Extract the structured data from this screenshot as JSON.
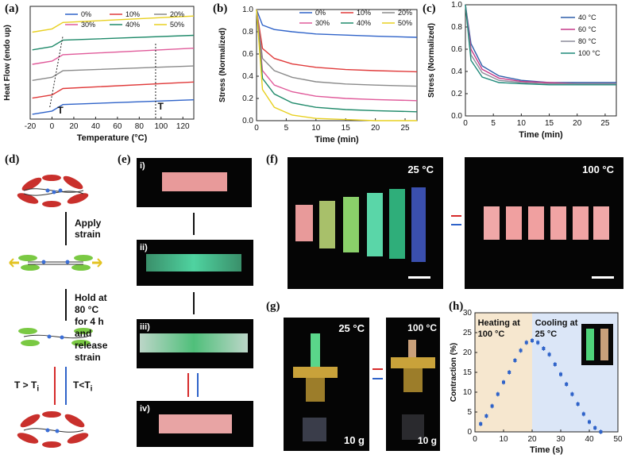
{
  "panel_labels": {
    "a": "(a)",
    "b": "(b)",
    "c": "(c)",
    "d": "(d)",
    "e": "(e)",
    "f": "(f)",
    "g": "(g)",
    "h": "(h)"
  },
  "colors": {
    "s0": "#2f63c9",
    "s10": "#e03a3a",
    "s20": "#8a8a8a",
    "s30": "#e05a9a",
    "s40": "#1f8a6a",
    "s50": "#e8d020",
    "c40": "#2f5faa",
    "c60": "#c63a8a",
    "c80": "#8c8c9a",
    "c100": "#1f8a7a",
    "heat": "#f6e7cf",
    "cool": "#dbe6f7",
    "marker": "#2f63c9"
  },
  "chart_data": [
    {
      "panel": "a",
      "type": "line",
      "xlabel": "Temperature (°C)",
      "ylabel": "Heat Flow (endo up)",
      "xlim": [
        -20,
        130
      ],
      "xticks": [
        "-20",
        "0",
        "20",
        "40",
        "60",
        "80",
        "100",
        "120"
      ],
      "legend": [
        "0%",
        "10%",
        "20%",
        "30%",
        "40%",
        "50%"
      ],
      "annotations": [
        "Tg",
        "Ti"
      ],
      "series": [
        {
          "name": "0%",
          "x": [
            -18,
            0,
            10,
            130
          ],
          "y": [
            0.3,
            0.5,
            0.9,
            1.2
          ]
        },
        {
          "name": "10%",
          "x": [
            -18,
            0,
            10,
            130
          ],
          "y": [
            1.3,
            1.5,
            1.9,
            2.3
          ]
        },
        {
          "name": "20%",
          "x": [
            -18,
            0,
            10,
            130
          ],
          "y": [
            2.4,
            2.6,
            3.0,
            3.3
          ]
        },
        {
          "name": "30%",
          "x": [
            -18,
            0,
            10,
            130
          ],
          "y": [
            3.4,
            3.6,
            4.0,
            4.4
          ]
        },
        {
          "name": "40%",
          "x": [
            -18,
            0,
            10,
            130
          ],
          "y": [
            4.3,
            4.5,
            4.9,
            5.2
          ]
        },
        {
          "name": "50%",
          "x": [
            -18,
            0,
            10,
            130
          ],
          "y": [
            5.4,
            5.6,
            6.0,
            6.4
          ]
        }
      ]
    },
    {
      "panel": "b",
      "type": "line",
      "xlabel": "Time (min)",
      "ylabel": "Stress (Normalized)",
      "xlim": [
        0,
        27
      ],
      "ylim": [
        0,
        1.0
      ],
      "xticks": [
        "0",
        "5",
        "10",
        "15",
        "20",
        "25"
      ],
      "yticks": [
        "0.0",
        "0.2",
        "0.4",
        "0.6",
        "0.8",
        "1.0"
      ],
      "legend": [
        "0%",
        "10%",
        "20%",
        "30%",
        "40%",
        "50%"
      ],
      "series": [
        {
          "name": "0%",
          "x": [
            0,
            1,
            3,
            6,
            10,
            15,
            20,
            27
          ],
          "y": [
            1.0,
            0.86,
            0.82,
            0.8,
            0.78,
            0.77,
            0.76,
            0.75
          ]
        },
        {
          "name": "10%",
          "x": [
            0,
            1,
            3,
            6,
            10,
            15,
            20,
            27
          ],
          "y": [
            1.0,
            0.65,
            0.56,
            0.51,
            0.48,
            0.46,
            0.45,
            0.44
          ]
        },
        {
          "name": "20%",
          "x": [
            0,
            1,
            3,
            6,
            10,
            15,
            20,
            27
          ],
          "y": [
            1.0,
            0.56,
            0.45,
            0.39,
            0.35,
            0.33,
            0.32,
            0.31
          ]
        },
        {
          "name": "30%",
          "x": [
            0,
            1,
            3,
            6,
            10,
            15,
            20,
            27
          ],
          "y": [
            1.0,
            0.45,
            0.32,
            0.26,
            0.22,
            0.2,
            0.19,
            0.18
          ]
        },
        {
          "name": "40%",
          "x": [
            0,
            1,
            3,
            6,
            10,
            15,
            20,
            27
          ],
          "y": [
            1.0,
            0.38,
            0.24,
            0.16,
            0.12,
            0.1,
            0.09,
            0.08
          ]
        },
        {
          "name": "50%",
          "x": [
            0,
            1,
            3,
            6,
            10,
            15,
            20,
            27
          ],
          "y": [
            1.0,
            0.28,
            0.12,
            0.05,
            0.02,
            0.01,
            0.0,
            0.0
          ]
        }
      ]
    },
    {
      "panel": "c",
      "type": "line",
      "xlabel": "Time (min)",
      "ylabel": "Stress (Normalized)",
      "xlim": [
        0,
        27
      ],
      "ylim": [
        0,
        1.0
      ],
      "xticks": [
        "0",
        "5",
        "10",
        "15",
        "20",
        "25"
      ],
      "yticks": [
        "0.0",
        "0.2",
        "0.4",
        "0.6",
        "0.8",
        "1.0"
      ],
      "legend": [
        "40 °C",
        "60 °C",
        "80 °C",
        "100 °C"
      ],
      "series": [
        {
          "name": "40 °C",
          "x": [
            0,
            1,
            3,
            6,
            10,
            15,
            20,
            27
          ],
          "y": [
            1.0,
            0.65,
            0.45,
            0.36,
            0.32,
            0.3,
            0.3,
            0.3
          ]
        },
        {
          "name": "60 °C",
          "x": [
            0,
            1,
            3,
            6,
            10,
            15,
            20,
            27
          ],
          "y": [
            1.0,
            0.6,
            0.42,
            0.34,
            0.31,
            0.3,
            0.29,
            0.29
          ]
        },
        {
          "name": "80 °C",
          "x": [
            0,
            1,
            3,
            6,
            10,
            15,
            20,
            27
          ],
          "y": [
            1.0,
            0.55,
            0.39,
            0.32,
            0.3,
            0.29,
            0.29,
            0.29
          ]
        },
        {
          "name": "100 °C",
          "x": [
            0,
            1,
            3,
            6,
            10,
            15,
            20,
            27
          ],
          "y": [
            1.0,
            0.5,
            0.35,
            0.3,
            0.29,
            0.28,
            0.28,
            0.28
          ]
        }
      ]
    },
    {
      "panel": "h",
      "type": "scatter",
      "xlabel": "Time (s)",
      "ylabel": "Contraction (%)",
      "xlim": [
        0,
        50
      ],
      "ylim": [
        0,
        30
      ],
      "xticks": [
        "0",
        "10",
        "20",
        "30",
        "40",
        "50"
      ],
      "yticks": [
        "0",
        "5",
        "10",
        "15",
        "20",
        "25",
        "30"
      ],
      "heating_label": [
        "Heating at",
        "100 °C"
      ],
      "cooling_label": [
        "Cooling at",
        "25 °C"
      ],
      "heat_range": [
        0,
        20
      ],
      "cool_range": [
        20,
        50
      ],
      "x": [
        2,
        4,
        6,
        8,
        10,
        12,
        14,
        16,
        18,
        20,
        22,
        24,
        26,
        28,
        30,
        32,
        34,
        36,
        38,
        40,
        42,
        44
      ],
      "y": [
        2,
        4,
        6.5,
        9.5,
        12.5,
        15,
        18,
        20.5,
        22.5,
        23,
        22.5,
        21,
        19.5,
        17,
        14.5,
        12,
        9.5,
        7,
        4.5,
        2.5,
        1,
        0
      ]
    }
  ],
  "panel_d": {
    "step1": "Apply strain",
    "step2": [
      "Hold at 80 °C for 4 h",
      "and release strain"
    ],
    "heat": "T > T",
    "heat_sub": "i",
    "cool": "T<T",
    "cool_sub": "i"
  },
  "panel_e": {
    "labels": [
      "i)",
      "ii)",
      "iii)",
      "iv)"
    ]
  },
  "panel_f": {
    "left_temp": "25 °C",
    "right_temp": "100 °C"
  },
  "panel_g": {
    "left_temp": "25 °C",
    "right_temp": "100 °C",
    "left_weight": "10 g",
    "right_weight": "10 g"
  }
}
